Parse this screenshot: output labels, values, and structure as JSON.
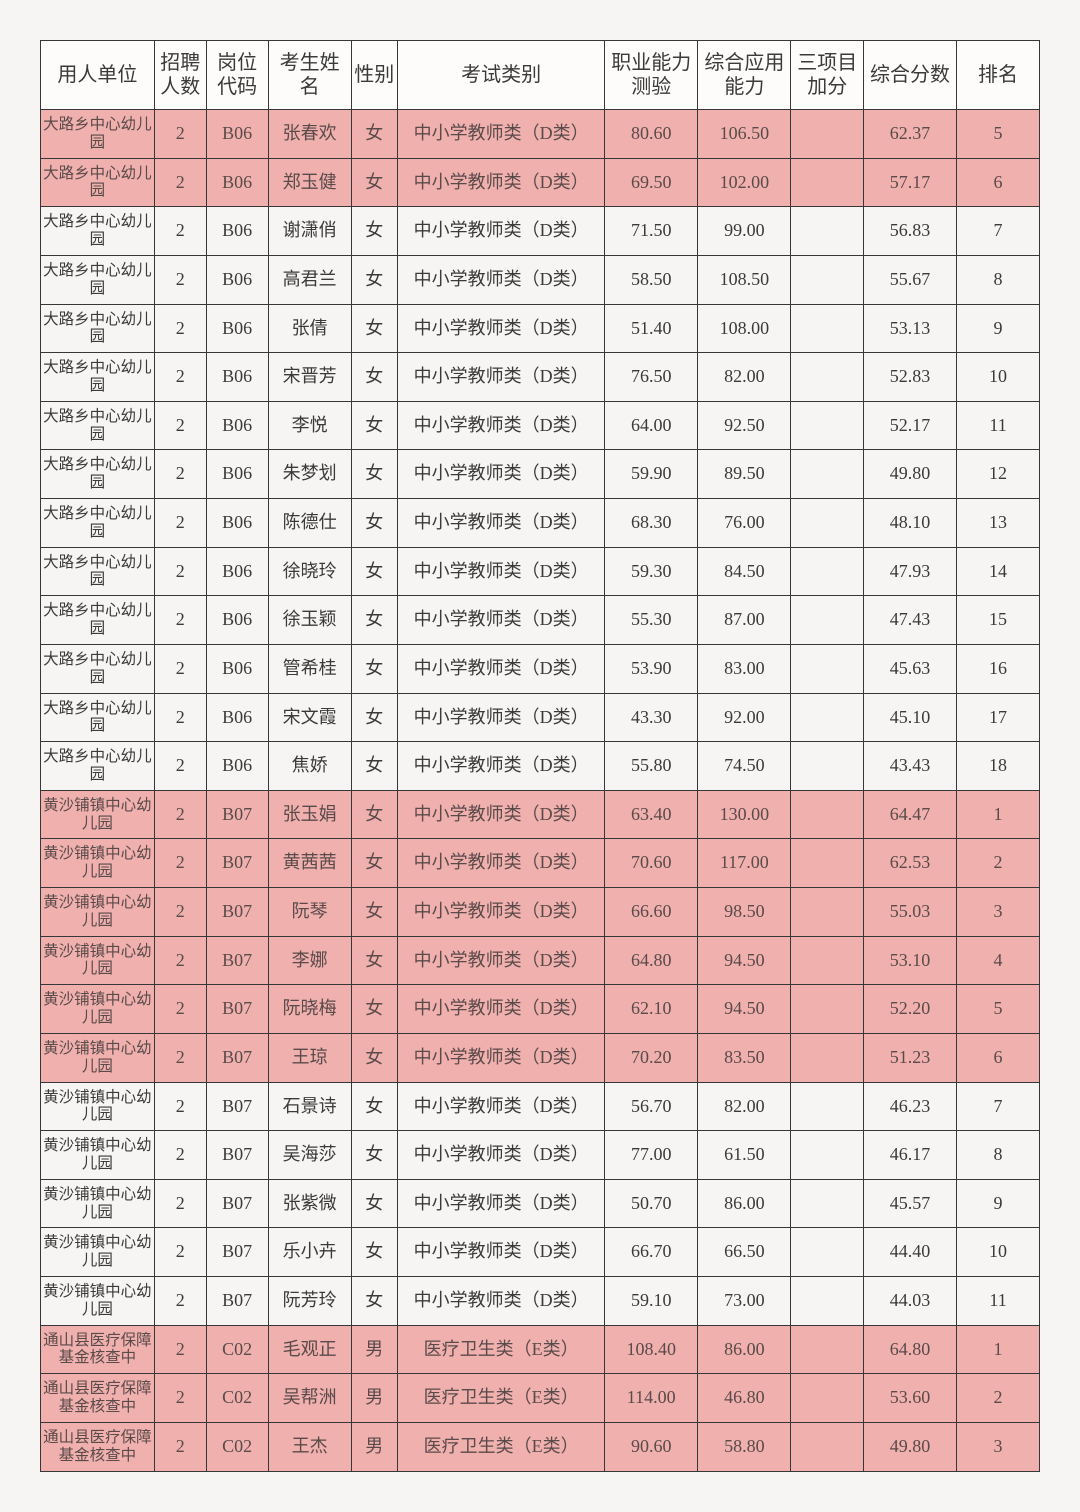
{
  "table": {
    "header_fontsize": 20,
    "body_fontsize": 18,
    "small_fontsize": 15.5,
    "border_color": "#373737",
    "highlight_bg": "#efb0ae",
    "normal_bg": "#fdfcfb",
    "page_bg": "#f7f5f3",
    "text_color": "#3a3a3a",
    "headers": {
      "unit": "用人单位",
      "count": "招聘人数",
      "code": "岗位代码",
      "name": "考生姓名",
      "gender": "性别",
      "type": "考试类别",
      "s1": "职业能力测验",
      "s2": "综合应用能力",
      "bonus": "三项目加分",
      "total": "综合分数",
      "rank": "排名"
    },
    "rows": [
      {
        "hl": true,
        "unit": "大路乡中心幼儿园",
        "count": "2",
        "code": "B06",
        "name": "张春欢",
        "gender": "女",
        "type": "中小学教师类（D类）",
        "s1": "80.60",
        "s2": "106.50",
        "bonus": "",
        "total": "62.37",
        "rank": "5"
      },
      {
        "hl": true,
        "unit": "大路乡中心幼儿园",
        "count": "2",
        "code": "B06",
        "name": "郑玉健",
        "gender": "女",
        "type": "中小学教师类（D类）",
        "s1": "69.50",
        "s2": "102.00",
        "bonus": "",
        "total": "57.17",
        "rank": "6"
      },
      {
        "hl": false,
        "unit": "大路乡中心幼儿园",
        "count": "2",
        "code": "B06",
        "name": "谢潇俏",
        "gender": "女",
        "type": "中小学教师类（D类）",
        "s1": "71.50",
        "s2": "99.00",
        "bonus": "",
        "total": "56.83",
        "rank": "7"
      },
      {
        "hl": false,
        "unit": "大路乡中心幼儿园",
        "count": "2",
        "code": "B06",
        "name": "高君兰",
        "gender": "女",
        "type": "中小学教师类（D类）",
        "s1": "58.50",
        "s2": "108.50",
        "bonus": "",
        "total": "55.67",
        "rank": "8"
      },
      {
        "hl": false,
        "unit": "大路乡中心幼儿园",
        "count": "2",
        "code": "B06",
        "name": "张倩",
        "gender": "女",
        "type": "中小学教师类（D类）",
        "s1": "51.40",
        "s2": "108.00",
        "bonus": "",
        "total": "53.13",
        "rank": "9"
      },
      {
        "hl": false,
        "unit": "大路乡中心幼儿园",
        "count": "2",
        "code": "B06",
        "name": "宋晋芳",
        "gender": "女",
        "type": "中小学教师类（D类）",
        "s1": "76.50",
        "s2": "82.00",
        "bonus": "",
        "total": "52.83",
        "rank": "10"
      },
      {
        "hl": false,
        "unit": "大路乡中心幼儿园",
        "count": "2",
        "code": "B06",
        "name": "李悦",
        "gender": "女",
        "type": "中小学教师类（D类）",
        "s1": "64.00",
        "s2": "92.50",
        "bonus": "",
        "total": "52.17",
        "rank": "11"
      },
      {
        "hl": false,
        "unit": "大路乡中心幼儿园",
        "count": "2",
        "code": "B06",
        "name": "朱梦划",
        "gender": "女",
        "type": "中小学教师类（D类）",
        "s1": "59.90",
        "s2": "89.50",
        "bonus": "",
        "total": "49.80",
        "rank": "12"
      },
      {
        "hl": false,
        "unit": "大路乡中心幼儿园",
        "count": "2",
        "code": "B06",
        "name": "陈德仕",
        "gender": "女",
        "type": "中小学教师类（D类）",
        "s1": "68.30",
        "s2": "76.00",
        "bonus": "",
        "total": "48.10",
        "rank": "13"
      },
      {
        "hl": false,
        "unit": "大路乡中心幼儿园",
        "count": "2",
        "code": "B06",
        "name": "徐晓玲",
        "gender": "女",
        "type": "中小学教师类（D类）",
        "s1": "59.30",
        "s2": "84.50",
        "bonus": "",
        "total": "47.93",
        "rank": "14"
      },
      {
        "hl": false,
        "unit": "大路乡中心幼儿园",
        "count": "2",
        "code": "B06",
        "name": "徐玉颖",
        "gender": "女",
        "type": "中小学教师类（D类）",
        "s1": "55.30",
        "s2": "87.00",
        "bonus": "",
        "total": "47.43",
        "rank": "15"
      },
      {
        "hl": false,
        "unit": "大路乡中心幼儿园",
        "count": "2",
        "code": "B06",
        "name": "管希桂",
        "gender": "女",
        "type": "中小学教师类（D类）",
        "s1": "53.90",
        "s2": "83.00",
        "bonus": "",
        "total": "45.63",
        "rank": "16"
      },
      {
        "hl": false,
        "unit": "大路乡中心幼儿园",
        "count": "2",
        "code": "B06",
        "name": "宋文霞",
        "gender": "女",
        "type": "中小学教师类（D类）",
        "s1": "43.30",
        "s2": "92.00",
        "bonus": "",
        "total": "45.10",
        "rank": "17"
      },
      {
        "hl": false,
        "unit": "大路乡中心幼儿园",
        "count": "2",
        "code": "B06",
        "name": "焦娇",
        "gender": "女",
        "type": "中小学教师类（D类）",
        "s1": "55.80",
        "s2": "74.50",
        "bonus": "",
        "total": "43.43",
        "rank": "18"
      },
      {
        "hl": true,
        "unit": "黄沙铺镇中心幼儿园",
        "count": "2",
        "code": "B07",
        "name": "张玉娟",
        "gender": "女",
        "type": "中小学教师类（D类）",
        "s1": "63.40",
        "s2": "130.00",
        "bonus": "",
        "total": "64.47",
        "rank": "1"
      },
      {
        "hl": true,
        "unit": "黄沙铺镇中心幼儿园",
        "count": "2",
        "code": "B07",
        "name": "黄茜茜",
        "gender": "女",
        "type": "中小学教师类（D类）",
        "s1": "70.60",
        "s2": "117.00",
        "bonus": "",
        "total": "62.53",
        "rank": "2"
      },
      {
        "hl": true,
        "unit": "黄沙铺镇中心幼儿园",
        "count": "2",
        "code": "B07",
        "name": "阮琴",
        "gender": "女",
        "type": "中小学教师类（D类）",
        "s1": "66.60",
        "s2": "98.50",
        "bonus": "",
        "total": "55.03",
        "rank": "3"
      },
      {
        "hl": true,
        "unit": "黄沙铺镇中心幼儿园",
        "count": "2",
        "code": "B07",
        "name": "李娜",
        "gender": "女",
        "type": "中小学教师类（D类）",
        "s1": "64.80",
        "s2": "94.50",
        "bonus": "",
        "total": "53.10",
        "rank": "4"
      },
      {
        "hl": true,
        "unit": "黄沙铺镇中心幼儿园",
        "count": "2",
        "code": "B07",
        "name": "阮晓梅",
        "gender": "女",
        "type": "中小学教师类（D类）",
        "s1": "62.10",
        "s2": "94.50",
        "bonus": "",
        "total": "52.20",
        "rank": "5"
      },
      {
        "hl": true,
        "unit": "黄沙铺镇中心幼儿园",
        "count": "2",
        "code": "B07",
        "name": "王琼",
        "gender": "女",
        "type": "中小学教师类（D类）",
        "s1": "70.20",
        "s2": "83.50",
        "bonus": "",
        "total": "51.23",
        "rank": "6"
      },
      {
        "hl": false,
        "unit": "黄沙铺镇中心幼儿园",
        "count": "2",
        "code": "B07",
        "name": "石景诗",
        "gender": "女",
        "type": "中小学教师类（D类）",
        "s1": "56.70",
        "s2": "82.00",
        "bonus": "",
        "total": "46.23",
        "rank": "7"
      },
      {
        "hl": false,
        "unit": "黄沙铺镇中心幼儿园",
        "count": "2",
        "code": "B07",
        "name": "吴海莎",
        "gender": "女",
        "type": "中小学教师类（D类）",
        "s1": "77.00",
        "s2": "61.50",
        "bonus": "",
        "total": "46.17",
        "rank": "8"
      },
      {
        "hl": false,
        "unit": "黄沙铺镇中心幼儿园",
        "count": "2",
        "code": "B07",
        "name": "张紫微",
        "gender": "女",
        "type": "中小学教师类（D类）",
        "s1": "50.70",
        "s2": "86.00",
        "bonus": "",
        "total": "45.57",
        "rank": "9"
      },
      {
        "hl": false,
        "unit": "黄沙铺镇中心幼儿园",
        "count": "2",
        "code": "B07",
        "name": "乐小卉",
        "gender": "女",
        "type": "中小学教师类（D类）",
        "s1": "66.70",
        "s2": "66.50",
        "bonus": "",
        "total": "44.40",
        "rank": "10"
      },
      {
        "hl": false,
        "unit": "黄沙铺镇中心幼儿园",
        "count": "2",
        "code": "B07",
        "name": "阮芳玲",
        "gender": "女",
        "type": "中小学教师类（D类）",
        "s1": "59.10",
        "s2": "73.00",
        "bonus": "",
        "total": "44.03",
        "rank": "11"
      },
      {
        "hl": true,
        "unit": "通山县医疗保障基金核查中",
        "count": "2",
        "code": "C02",
        "name": "毛观正",
        "gender": "男",
        "type": "医疗卫生类（E类）",
        "s1": "108.40",
        "s2": "86.00",
        "bonus": "",
        "total": "64.80",
        "rank": "1"
      },
      {
        "hl": true,
        "unit": "通山县医疗保障基金核查中",
        "count": "2",
        "code": "C02",
        "name": "吴帮洲",
        "gender": "男",
        "type": "医疗卫生类（E类）",
        "s1": "114.00",
        "s2": "46.80",
        "bonus": "",
        "total": "53.60",
        "rank": "2"
      },
      {
        "hl": true,
        "unit": "通山县医疗保障基金核查中",
        "count": "2",
        "code": "C02",
        "name": "王杰",
        "gender": "男",
        "type": "医疗卫生类（E类）",
        "s1": "90.60",
        "s2": "58.80",
        "bonus": "",
        "total": "49.80",
        "rank": "3"
      }
    ]
  }
}
